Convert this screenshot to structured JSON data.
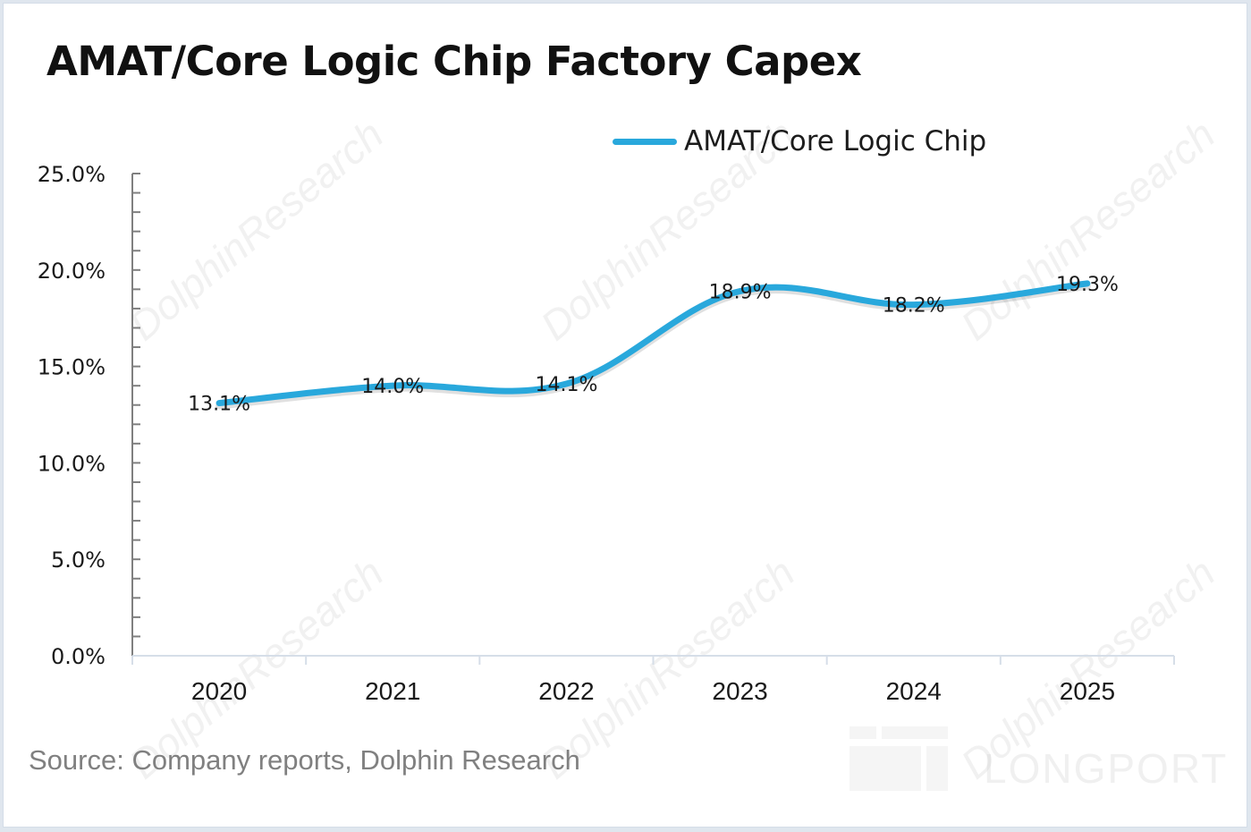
{
  "title": "AMAT/Core Logic Chip Factory Capex",
  "source": "Source: Company reports, Dolphin Research",
  "watermarks": {
    "text": "DolphinResearch",
    "brand": "LONGPORT"
  },
  "colors": {
    "line": "#29a8dc",
    "axis": "#7f7f7f",
    "baseline": "#d6dee8"
  },
  "chart_data": {
    "type": "line",
    "title": "AMAT/Core Logic Chip Factory Capex",
    "xlabel": "",
    "ylabel": "",
    "categories": [
      "2020",
      "2021",
      "2022",
      "2023",
      "2024",
      "2025"
    ],
    "series": [
      {
        "name": "AMAT/Core Logic Chip",
        "values": [
          13.1,
          14.0,
          14.1,
          18.9,
          18.2,
          19.3
        ],
        "labels": [
          "13.1%",
          "14.0%",
          "14.1%",
          "18.9%",
          "18.2%",
          "19.3%"
        ]
      }
    ],
    "ylim": [
      0,
      25
    ],
    "yticks": [
      0,
      5,
      10,
      15,
      20,
      25
    ],
    "ytick_labels": [
      "0.0%",
      "5.0%",
      "10.0%",
      "15.0%",
      "20.0%",
      "25.0%"
    ],
    "minor_tick_step": 1,
    "grid": false,
    "smooth": true,
    "legend": "top-right"
  }
}
